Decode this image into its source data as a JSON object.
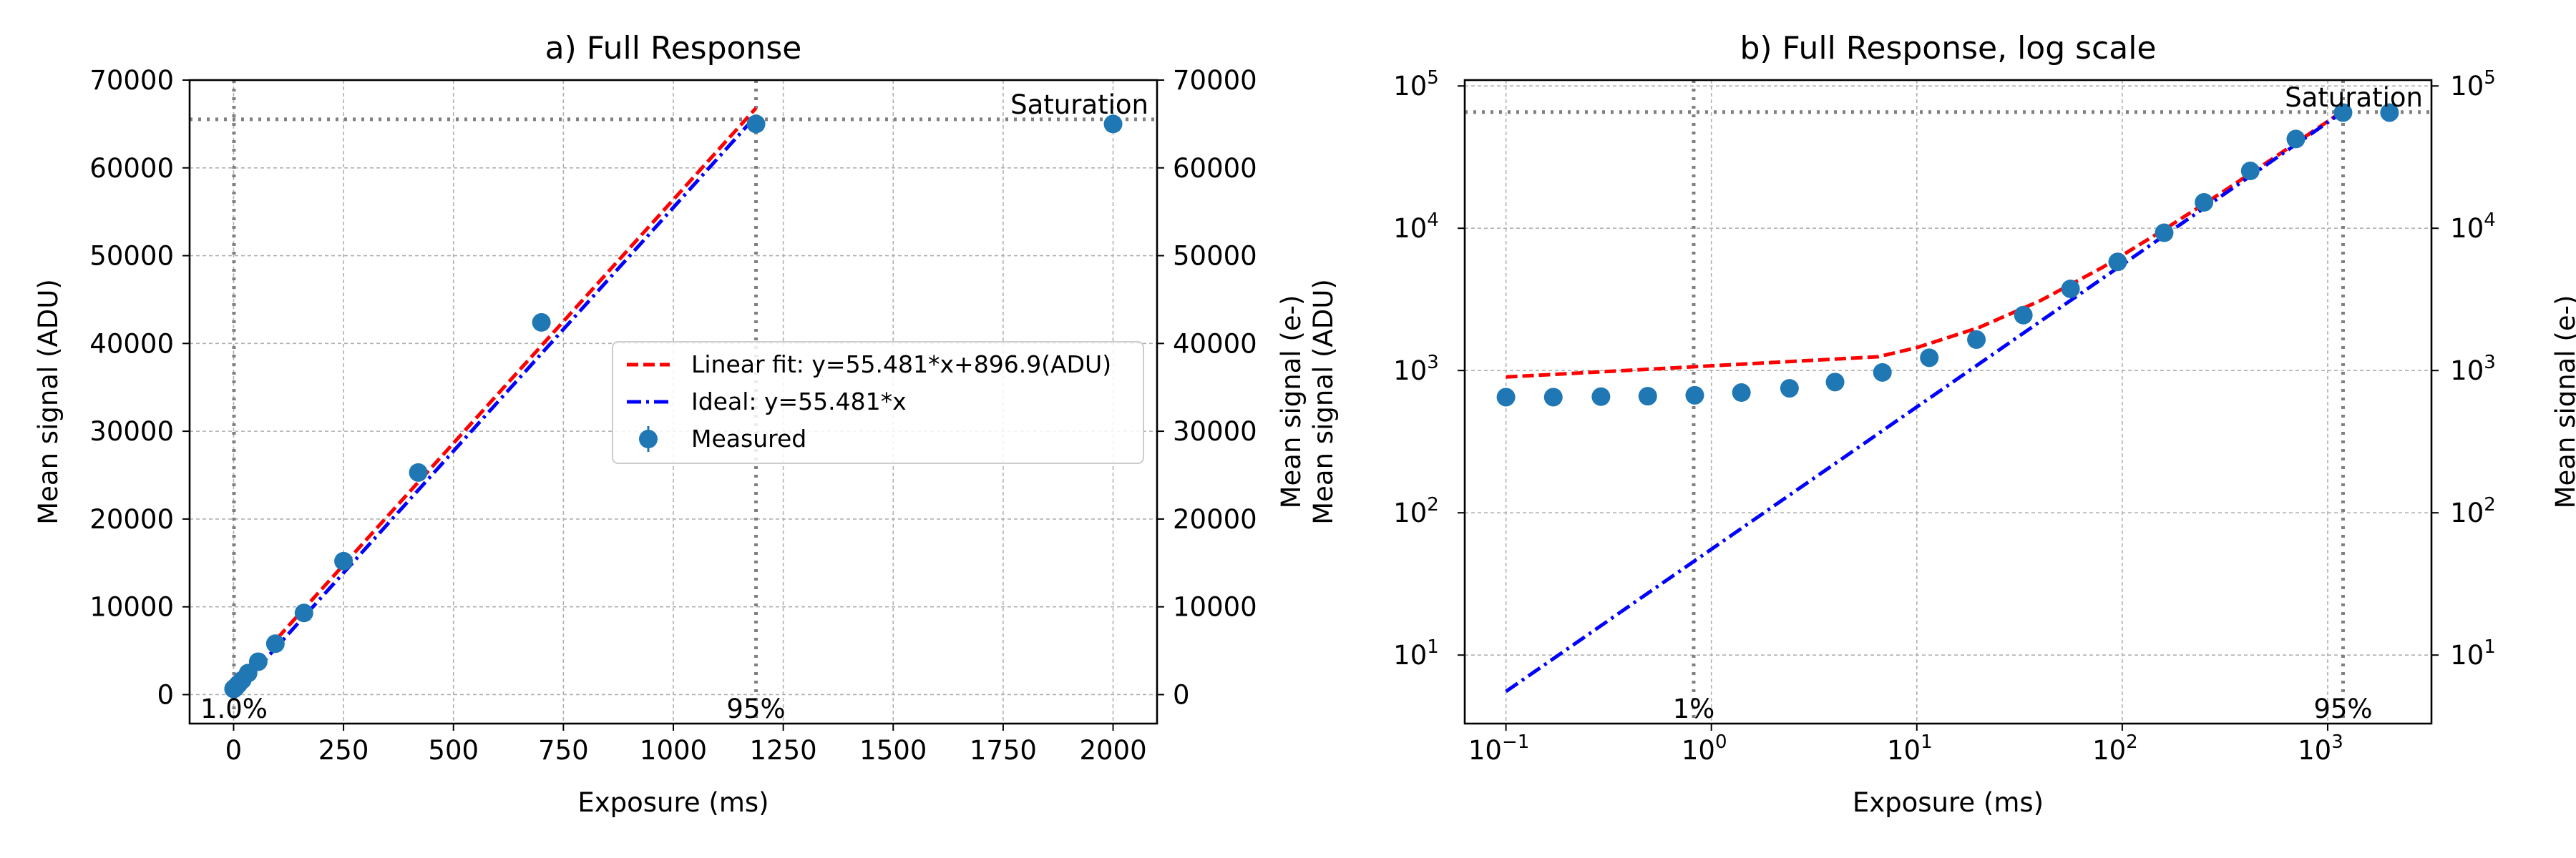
{
  "chart_data": [
    {
      "type": "line",
      "title": "a) Full Response",
      "xlabel": "Exposure (ms)",
      "ylabel": "Mean signal (ADU)",
      "ylabel_right": "Mean signal (e-)",
      "xscale": "linear",
      "yscale": "linear",
      "xlim": [
        -100,
        2100
      ],
      "ylim": [
        -3300,
        70000
      ],
      "xticks": [
        0,
        250,
        500,
        750,
        1000,
        1250,
        1500,
        1750,
        2000
      ],
      "xtick_labels": [
        "0",
        "250",
        "500",
        "750",
        "1000",
        "1250",
        "1500",
        "1750",
        "2000"
      ],
      "yticks": [
        0,
        10000,
        20000,
        30000,
        40000,
        50000,
        60000,
        70000
      ],
      "ytick_labels": [
        "0",
        "10000",
        "20000",
        "30000",
        "40000",
        "50000",
        "60000",
        "70000"
      ],
      "ytick_labels_right": [
        "0",
        "10000",
        "20000",
        "30000",
        "40000",
        "50000",
        "60000",
        "70000"
      ],
      "grid": true,
      "legend_position": "center-right",
      "series": [
        {
          "name": "Linear fit: y=55.481*x+896.9(ADU)",
          "kind": "line",
          "color": "#ff0000",
          "dash": "dashed",
          "x": [
            100,
            1188
          ],
          "y": [
            6445,
            66810
          ]
        },
        {
          "name": "Ideal: y=55.481*x",
          "kind": "line",
          "color": "#0000ff",
          "dash": "dashdot",
          "x": [
            0,
            1188
          ],
          "y": [
            0,
            65911
          ]
        },
        {
          "name": "Measured",
          "kind": "errorbar",
          "color": "#1f77b4",
          "x": [
            0.1,
            0.17,
            0.29,
            0.49,
            0.83,
            1.4,
            2.4,
            4,
            6.8,
            11.5,
            19.5,
            33,
            56,
            95,
            160,
            250,
            420,
            700,
            1188,
            2000
          ],
          "y": [
            650,
            650,
            655,
            660,
            670,
            700,
            750,
            830,
            970,
            1230,
            1650,
            2450,
            3750,
            5800,
            9300,
            15200,
            25300,
            42400,
            65000,
            65000
          ]
        }
      ],
      "ref_lines": [
        {
          "orientation": "vertical",
          "x": 0.82,
          "label": "1.0%",
          "color": "#808080"
        },
        {
          "orientation": "vertical",
          "x": 1188,
          "label": "95%",
          "color": "#808080"
        },
        {
          "orientation": "horizontal",
          "y": 65535,
          "label": "Saturation",
          "color": "#808080"
        }
      ]
    },
    {
      "type": "line",
      "title": "b) Full Response, log scale",
      "xlabel": "Exposure (ms)",
      "ylabel": "Mean signal (ADU)",
      "ylabel_right": "Mean signal (e-)",
      "xscale": "log",
      "yscale": "log",
      "xlim": [
        0.063,
        3200
      ],
      "ylim": [
        3.3,
        110000
      ],
      "xticks": [
        0.1,
        1,
        10,
        100,
        1000
      ],
      "xtick_labels": [
        {
          "base": "10",
          "exp": "−1"
        },
        {
          "base": "10",
          "exp": "0"
        },
        {
          "base": "10",
          "exp": "1"
        },
        {
          "base": "10",
          "exp": "2"
        },
        {
          "base": "10",
          "exp": "3"
        }
      ],
      "yticks": [
        10,
        100,
        1000,
        10000,
        100000
      ],
      "ytick_labels": [
        {
          "base": "10",
          "exp": "1"
        },
        {
          "base": "10",
          "exp": "2"
        },
        {
          "base": "10",
          "exp": "3"
        },
        {
          "base": "10",
          "exp": "4"
        },
        {
          "base": "10",
          "exp": "5"
        }
      ],
      "ytick_labels_right": [
        {
          "base": "10",
          "exp": "1"
        },
        {
          "base": "10",
          "exp": "2"
        },
        {
          "base": "10",
          "exp": "3"
        },
        {
          "base": "10",
          "exp": "4"
        },
        {
          "base": "10",
          "exp": "5"
        }
      ],
      "grid": true,
      "legend_position": "none",
      "series": [
        {
          "name": "Linear fit: y=55.481*x+896.9(ADU)",
          "kind": "line",
          "color": "#ff0000",
          "dash": "dashed",
          "x": [
            0.1,
            6.5,
            10,
            20,
            40,
            80,
            160,
            320,
            640,
            1188
          ],
          "y": [
            900,
            1250,
            1450,
            2000,
            3100,
            5300,
            9800,
            18650,
            36400,
            66810
          ]
        },
        {
          "name": "Ideal: y=55.481*x",
          "kind": "line",
          "color": "#0000ff",
          "dash": "dashdot",
          "x": [
            0.1,
            1188
          ],
          "y": [
            5.55,
            65911
          ]
        },
        {
          "name": "Measured",
          "kind": "errorbar",
          "color": "#1f77b4",
          "x": [
            0.1,
            0.17,
            0.29,
            0.49,
            0.83,
            1.4,
            2.4,
            4,
            6.8,
            11.5,
            19.5,
            33,
            56,
            95,
            160,
            250,
            420,
            700,
            1188,
            2000
          ],
          "y": [
            650,
            650,
            655,
            660,
            670,
            700,
            750,
            830,
            970,
            1230,
            1650,
            2450,
            3750,
            5800,
            9300,
            15200,
            25300,
            42400,
            65000,
            65000
          ]
        }
      ],
      "ref_lines": [
        {
          "orientation": "vertical",
          "x": 0.82,
          "label": "1%",
          "color": "#808080"
        },
        {
          "orientation": "vertical",
          "x": 1188,
          "label": "95%",
          "color": "#808080"
        },
        {
          "orientation": "horizontal",
          "y": 65535,
          "label": "Saturation",
          "color": "#808080"
        }
      ]
    }
  ]
}
